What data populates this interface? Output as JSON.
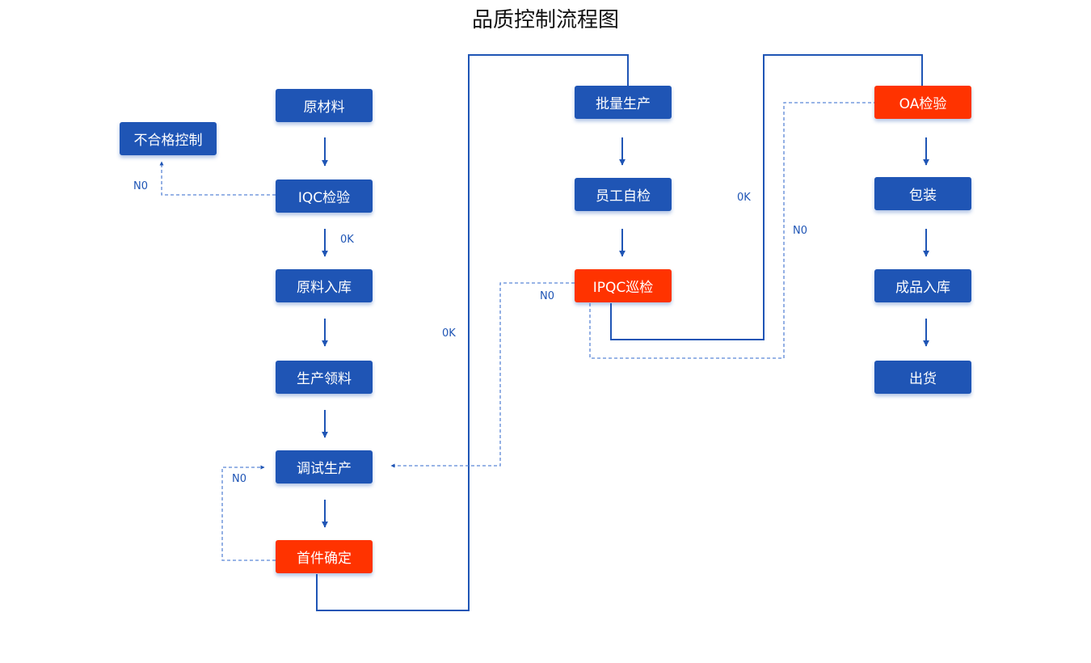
{
  "title": "品质控制流程图",
  "colors": {
    "normal": "#1f55b5",
    "highlight": "#ff3300"
  },
  "nodes": {
    "raw": {
      "label": "原材料",
      "color": "normal"
    },
    "reject": {
      "label": "不合格控制",
      "color": "normal"
    },
    "iqc": {
      "label": "IQC检验",
      "color": "normal"
    },
    "store": {
      "label": "原料入库",
      "color": "normal"
    },
    "pick": {
      "label": "生产领料",
      "color": "normal"
    },
    "debug": {
      "label": "调试生产",
      "color": "normal"
    },
    "first": {
      "label": "首件确定",
      "color": "highlight"
    },
    "mass": {
      "label": "批量生产",
      "color": "normal"
    },
    "self": {
      "label": "员工自检",
      "color": "normal"
    },
    "ipqc": {
      "label": "IPQC巡检",
      "color": "highlight"
    },
    "oa": {
      "label": "OA检验",
      "color": "highlight"
    },
    "pack": {
      "label": "包装",
      "color": "normal"
    },
    "fgstore": {
      "label": "成品入库",
      "color": "normal"
    },
    "ship": {
      "label": "出货",
      "color": "normal"
    }
  },
  "edge_labels": {
    "iqc_no": "N0",
    "iqc_ok": "0K",
    "first_ok": "0K",
    "ipqc_no": "N0",
    "ipqc_ok": "0K",
    "oa_no": "N0",
    "first_no": "N0"
  }
}
